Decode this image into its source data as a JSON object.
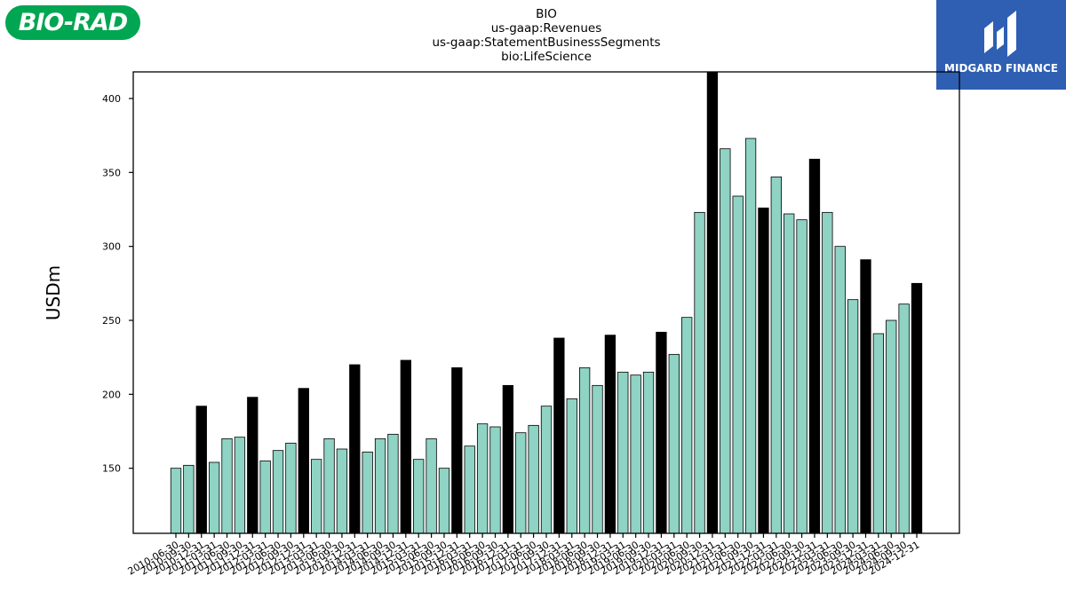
{
  "brand_left": {
    "text": "BIO-RAD"
  },
  "brand_right": {
    "text": "MIDGARD FINANCE"
  },
  "title_lines": [
    "BIO",
    "us-gaap:Revenues",
    "us-gaap:StatementBusinessSegments",
    "bio:LifeScience"
  ],
  "chart_data": {
    "type": "bar",
    "title": "BIO\nus-gaap:Revenues\nus-gaap:StatementBusinessSegments\nbio:LifeScience",
    "xlabel": "",
    "ylabel": "USDm",
    "ylim": [
      106,
      418
    ],
    "yticks": [
      150,
      200,
      250,
      300,
      350,
      400
    ],
    "grid": false,
    "colors": {
      "quarter": "#8fd3c4",
      "year_end": "#000000",
      "edge": "#000000"
    },
    "categories": [
      "2010-06-30",
      "2010-09-30",
      "2010-12-31",
      "2011-03-31",
      "2011-06-30",
      "2011-09-30",
      "2011-12-31",
      "2012-03-31",
      "2012-06-30",
      "2012-09-30",
      "2012-12-31",
      "2013-03-31",
      "2013-06-30",
      "2013-09-30",
      "2013-12-31",
      "2014-03-31",
      "2014-06-30",
      "2014-09-30",
      "2014-12-31",
      "2015-03-31",
      "2015-06-30",
      "2015-09-30",
      "2015-12-31",
      "2016-03-31",
      "2016-06-30",
      "2016-09-30",
      "2016-12-31",
      "2017-03-31",
      "2017-06-30",
      "2017-09-30",
      "2017-12-31",
      "2018-03-31",
      "2018-06-30",
      "2018-09-30",
      "2018-12-31",
      "2019-03-31",
      "2019-06-30",
      "2019-09-30",
      "2019-12-31",
      "2020-03-31",
      "2020-06-30",
      "2020-09-30",
      "2020-12-31",
      "2021-03-31",
      "2021-06-30",
      "2021-09-30",
      "2021-12-31",
      "2022-03-31",
      "2022-06-30",
      "2022-09-30",
      "2022-12-31",
      "2023-03-31",
      "2023-06-30",
      "2023-09-30",
      "2023-12-31",
      "2024-03-31",
      "2024-06-30",
      "2024-09-30",
      "2024-12-31"
    ],
    "values": [
      150,
      152,
      192,
      154,
      170,
      171,
      198,
      155,
      162,
      167,
      204,
      156,
      170,
      163,
      220,
      161,
      170,
      173,
      223,
      156,
      170,
      150,
      218,
      165,
      180,
      178,
      206,
      174,
      179,
      192,
      238,
      197,
      218,
      206,
      240,
      215,
      213,
      215,
      242,
      227,
      252,
      323,
      418,
      366,
      334,
      373,
      326,
      347,
      322,
      318,
      359,
      323,
      300,
      264,
      291,
      241,
      250,
      261,
      275
    ],
    "year_end": [
      false,
      false,
      true,
      false,
      false,
      false,
      true,
      false,
      false,
      false,
      true,
      false,
      false,
      false,
      true,
      false,
      false,
      false,
      true,
      false,
      false,
      false,
      true,
      false,
      false,
      false,
      true,
      false,
      false,
      false,
      true,
      false,
      false,
      false,
      true,
      false,
      false,
      false,
      true,
      false,
      false,
      false,
      true,
      false,
      false,
      false,
      true,
      false,
      false,
      false,
      true,
      false,
      false,
      false,
      true,
      false,
      false,
      false,
      true
    ]
  }
}
